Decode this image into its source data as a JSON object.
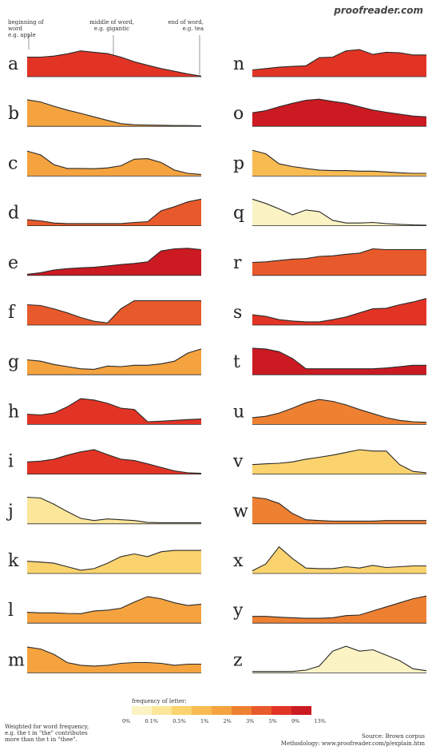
{
  "brand": "proofreader.com",
  "notes": {
    "begin": [
      "beginning of word",
      "e.g. apple"
    ],
    "middle": [
      "middle of word,",
      "e.g. gigantic"
    ],
    "end": [
      "end of word,",
      "e.g. tea"
    ],
    "weighted": [
      "Weighted for word frequency,",
      "e.g. the t in \"the\" contributes",
      "more than the t in \"thee\"."
    ]
  },
  "source": "Source: Brown corpus",
  "methodology": "Methodology: www.proofreader.com/p/explain.htm",
  "chart_data": {
    "type": "area",
    "x_meaning": "position within word, 0 = beginning, 1 = end",
    "x": [
      0,
      0.0769,
      0.1538,
      0.2308,
      0.3077,
      0.3846,
      0.4615,
      0.5385,
      0.6154,
      0.6923,
      0.7692,
      0.8462,
      0.9231,
      1
    ],
    "legend": {
      "title": "frequency of letter:",
      "ticks": [
        "0%",
        "0.1%",
        "0.5%",
        "1%",
        "2%",
        "3%",
        "5%",
        "9%",
        "13%"
      ],
      "colors": [
        "#fbf3c4",
        "#fbe69a",
        "#fbd36e",
        "#f8bb52",
        "#f4a33f",
        "#ee8032",
        "#e85a2b",
        "#e23425",
        "#cc1a22"
      ]
    },
    "series": [
      {
        "name": "a",
        "color": "#e23425",
        "values": [
          0.72,
          0.72,
          0.76,
          0.84,
          0.95,
          0.9,
          0.85,
          0.72,
          0.55,
          0.42,
          0.3,
          0.2,
          0.1,
          0.02
        ]
      },
      {
        "name": "b",
        "color": "#f4a33f",
        "values": [
          0.98,
          0.9,
          0.74,
          0.6,
          0.48,
          0.35,
          0.22,
          0.1,
          0.06,
          0.05,
          0.04,
          0.03,
          0.03,
          0.02
        ]
      },
      {
        "name": "c",
        "color": "#f4a33f",
        "values": [
          0.92,
          0.78,
          0.42,
          0.28,
          0.28,
          0.27,
          0.3,
          0.38,
          0.62,
          0.64,
          0.5,
          0.22,
          0.1,
          0.06
        ]
      },
      {
        "name": "d",
        "color": "#e85a2b",
        "values": [
          0.22,
          0.18,
          0.1,
          0.08,
          0.08,
          0.08,
          0.08,
          0.08,
          0.12,
          0.15,
          0.55,
          0.7,
          0.88,
          0.98
        ]
      },
      {
        "name": "e",
        "color": "#cc1a22",
        "values": [
          0.04,
          0.1,
          0.2,
          0.25,
          0.28,
          0.3,
          0.35,
          0.4,
          0.44,
          0.5,
          0.9,
          0.98,
          1.0,
          0.95
        ]
      },
      {
        "name": "f",
        "color": "#e85a2b",
        "values": [
          0.75,
          0.72,
          0.6,
          0.45,
          0.28,
          0.14,
          0.08,
          0.6,
          0.9,
          0.9,
          0.9,
          0.9,
          0.9,
          0.9
        ]
      },
      {
        "name": "g",
        "color": "#f4a33f",
        "values": [
          0.55,
          0.5,
          0.38,
          0.3,
          0.22,
          0.2,
          0.32,
          0.3,
          0.35,
          0.35,
          0.4,
          0.5,
          0.8,
          0.95
        ]
      },
      {
        "name": "h",
        "color": "#e23425",
        "values": [
          0.38,
          0.35,
          0.42,
          0.65,
          0.95,
          0.9,
          0.78,
          0.6,
          0.55,
          0.1,
          0.12,
          0.15,
          0.18,
          0.2
        ]
      },
      {
        "name": "i",
        "color": "#e23425",
        "values": [
          0.45,
          0.48,
          0.55,
          0.7,
          0.82,
          0.9,
          0.72,
          0.55,
          0.5,
          0.38,
          0.25,
          0.12,
          0.05,
          0.03
        ]
      },
      {
        "name": "j",
        "color": "#fbe69a",
        "values": [
          0.98,
          0.95,
          0.72,
          0.45,
          0.2,
          0.12,
          0.18,
          0.15,
          0.12,
          0.05,
          0.04,
          0.04,
          0.04,
          0.04
        ]
      },
      {
        "name": "k",
        "color": "#fbd36e",
        "values": [
          0.45,
          0.42,
          0.38,
          0.25,
          0.12,
          0.18,
          0.38,
          0.62,
          0.72,
          0.62,
          0.8,
          0.85,
          0.85,
          0.85
        ]
      },
      {
        "name": "l",
        "color": "#f4a33f",
        "values": [
          0.4,
          0.38,
          0.38,
          0.36,
          0.35,
          0.45,
          0.48,
          0.55,
          0.78,
          0.98,
          0.9,
          0.75,
          0.65,
          0.7
        ]
      },
      {
        "name": "m",
        "color": "#f4a33f",
        "values": [
          0.95,
          0.88,
          0.68,
          0.38,
          0.28,
          0.25,
          0.28,
          0.35,
          0.38,
          0.38,
          0.35,
          0.28,
          0.32,
          0.32
        ]
      },
      {
        "name": "n",
        "color": "#e23425",
        "values": [
          0.25,
          0.3,
          0.35,
          0.38,
          0.4,
          0.7,
          0.72,
          0.95,
          1.0,
          0.82,
          0.9,
          0.88,
          0.8,
          0.8
        ]
      },
      {
        "name": "o",
        "color": "#cc1a22",
        "values": [
          0.5,
          0.58,
          0.72,
          0.85,
          0.96,
          1.0,
          0.92,
          0.85,
          0.72,
          0.6,
          0.52,
          0.45,
          0.38,
          0.35
        ]
      },
      {
        "name": "p",
        "color": "#f8bb52",
        "values": [
          0.95,
          0.82,
          0.45,
          0.35,
          0.28,
          0.22,
          0.2,
          0.2,
          0.18,
          0.18,
          0.15,
          0.12,
          0.1,
          0.1
        ]
      },
      {
        "name": "q",
        "color": "#fbf3c4",
        "values": [
          0.98,
          0.82,
          0.62,
          0.4,
          0.58,
          0.52,
          0.2,
          0.1,
          0.1,
          0.12,
          0.08,
          0.05,
          0.03,
          0.02
        ]
      },
      {
        "name": "r",
        "color": "#e85a2b",
        "values": [
          0.48,
          0.5,
          0.55,
          0.6,
          0.62,
          0.7,
          0.72,
          0.78,
          0.82,
          0.98,
          0.95,
          0.95,
          0.95,
          0.95
        ]
      },
      {
        "name": "s",
        "color": "#e23425",
        "values": [
          0.38,
          0.32,
          0.2,
          0.15,
          0.12,
          0.12,
          0.2,
          0.3,
          0.45,
          0.6,
          0.62,
          0.75,
          0.85,
          0.98
        ]
      },
      {
        "name": "t",
        "color": "#cc1a22",
        "values": [
          0.98,
          0.95,
          0.85,
          0.6,
          0.22,
          0.22,
          0.22,
          0.22,
          0.22,
          0.22,
          0.25,
          0.3,
          0.35,
          0.35
        ]
      },
      {
        "name": "u",
        "color": "#ee8032",
        "values": [
          0.25,
          0.3,
          0.42,
          0.6,
          0.8,
          0.92,
          0.85,
          0.72,
          0.55,
          0.4,
          0.25,
          0.15,
          0.1,
          0.08
        ]
      },
      {
        "name": "v",
        "color": "#fbd36e",
        "values": [
          0.35,
          0.38,
          0.4,
          0.45,
          0.55,
          0.62,
          0.7,
          0.8,
          0.9,
          0.85,
          0.85,
          0.35,
          0.1,
          0.05
        ]
      },
      {
        "name": "w",
        "color": "#ee8032",
        "values": [
          0.98,
          0.92,
          0.75,
          0.38,
          0.15,
          0.12,
          0.1,
          0.1,
          0.1,
          0.1,
          0.12,
          0.12,
          0.12,
          0.12
        ]
      },
      {
        "name": "x",
        "color": "#fbd36e",
        "values": [
          0.1,
          0.35,
          0.98,
          0.55,
          0.2,
          0.18,
          0.18,
          0.25,
          0.2,
          0.3,
          0.22,
          0.25,
          0.28,
          0.28
        ]
      },
      {
        "name": "y",
        "color": "#ee8032",
        "values": [
          0.25,
          0.25,
          0.22,
          0.2,
          0.18,
          0.18,
          0.2,
          0.28,
          0.3,
          0.45,
          0.6,
          0.75,
          0.9,
          1.0
        ]
      },
      {
        "name": "z",
        "color": "#fbf3c4",
        "values": [
          0.05,
          0.05,
          0.05,
          0.05,
          0.1,
          0.25,
          0.8,
          0.98,
          0.8,
          0.85,
          0.65,
          0.45,
          0.15,
          0.08
        ]
      }
    ]
  }
}
